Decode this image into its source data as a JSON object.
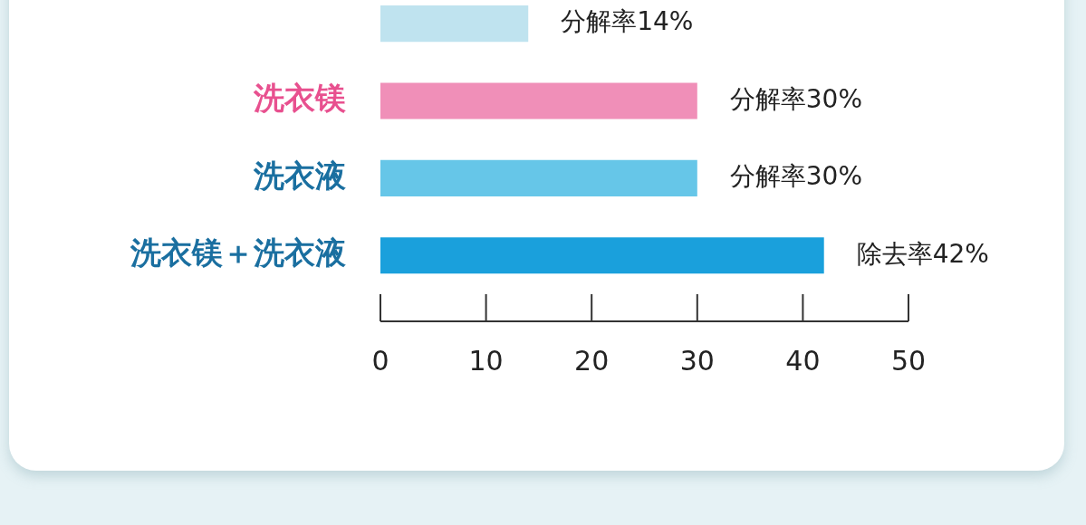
{
  "chart_data": {
    "type": "bar",
    "orientation": "horizontal",
    "categories": [
      null,
      "洗衣镁",
      "洗衣液",
      "洗衣镁＋洗衣液"
    ],
    "values": [
      14,
      30,
      30,
      42
    ],
    "colors": [
      "#bfe3ef",
      "#f08fb8",
      "#66c6e8",
      "#1aa0dc"
    ],
    "value_labels": [
      "分解率14%",
      "分解率30%",
      "分解率30%",
      "除去率42%"
    ],
    "xlim": [
      0,
      50
    ],
    "xticks": [
      0,
      10,
      20,
      30,
      40,
      50
    ],
    "grid": false
  }
}
